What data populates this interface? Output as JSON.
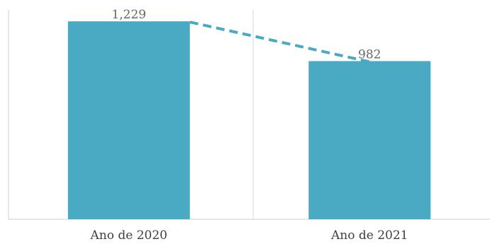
{
  "chart_data": {
    "type": "bar",
    "categories": [
      "Ano de 2020",
      "Ano de 2021"
    ],
    "values": [
      1229,
      982
    ],
    "data_labels": [
      "1,229",
      "982"
    ],
    "title": "",
    "xlabel": "",
    "ylabel": "",
    "ylim": [
      0,
      1300
    ],
    "grid": false,
    "legend": "none",
    "trend_line": "dashed",
    "bar_color": "#4aaac4",
    "trend_color": "#4aaac4"
  }
}
